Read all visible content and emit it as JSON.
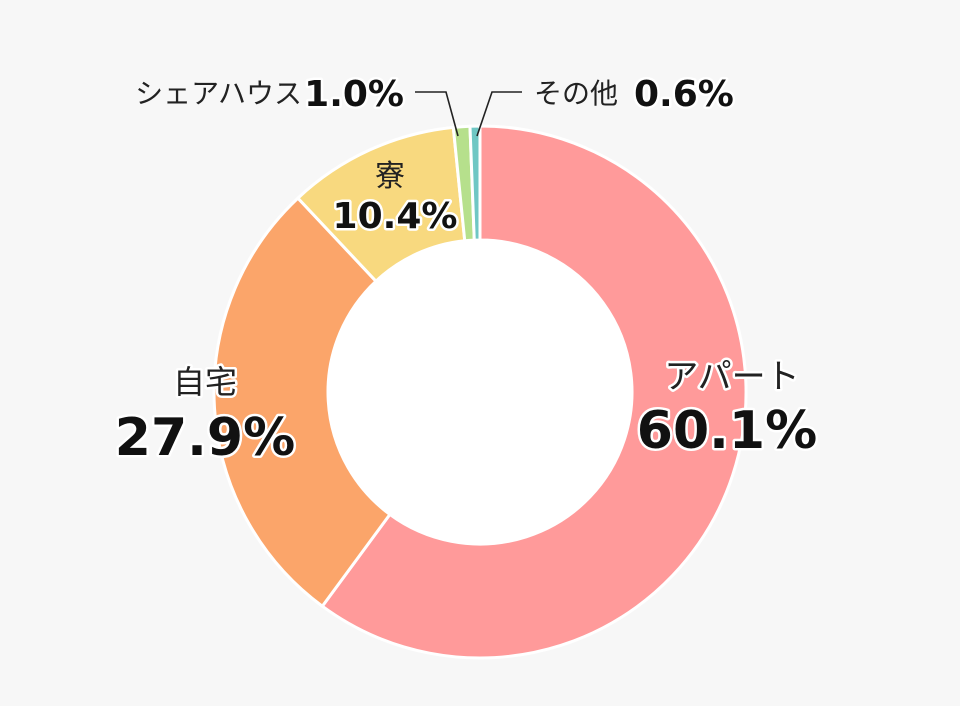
{
  "chart_data": {
    "type": "pie",
    "variant": "donut",
    "slices": [
      {
        "label": "アパート",
        "value": 60.1,
        "value_label": "60.1%",
        "color": "#ff9a9a"
      },
      {
        "label": "自宅",
        "value": 27.9,
        "value_label": "27.9%",
        "color": "#fba56a"
      },
      {
        "label": "寮",
        "value": 10.4,
        "value_label": "10.4%",
        "color": "#f8d97f"
      },
      {
        "label": "シェアハウス",
        "value": 1.0,
        "value_label": "1.0%",
        "color": "#b6e08c"
      },
      {
        "label": "その他",
        "value": 0.6,
        "value_label": "0.6%",
        "color": "#6fc7c4"
      }
    ],
    "start": "top",
    "direction": "clockwise"
  }
}
